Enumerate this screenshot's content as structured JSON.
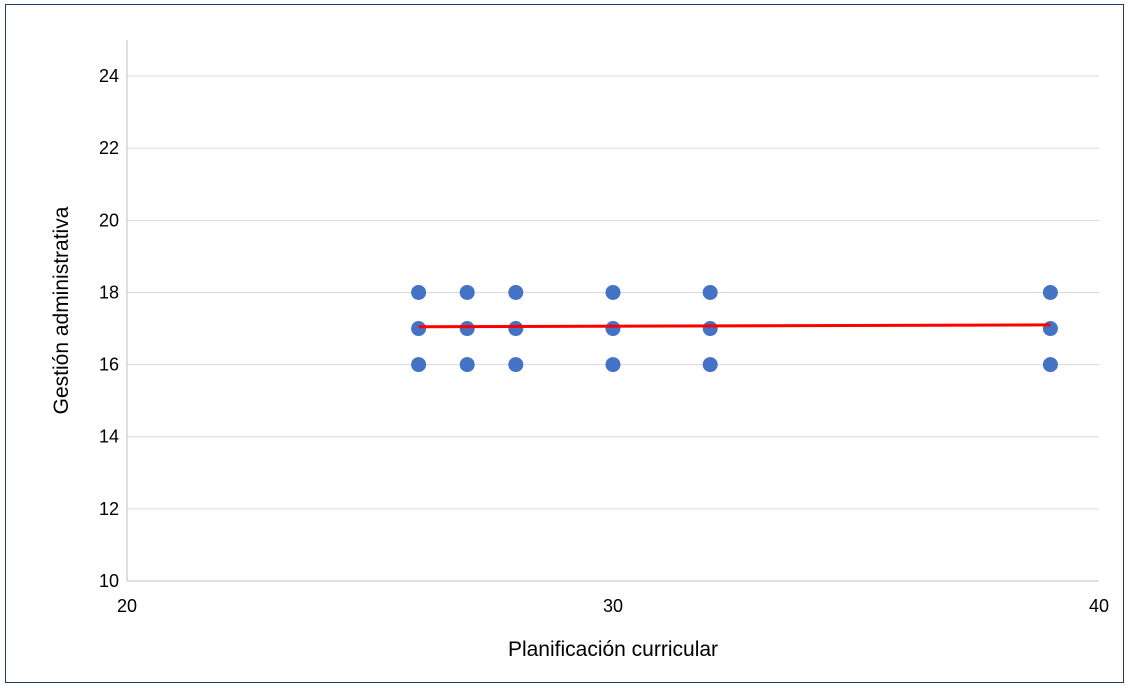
{
  "chart_data": {
    "type": "scatter",
    "title": "",
    "xlabel": "Planificación curricular",
    "ylabel": "Gestión administrativa",
    "xlim": [
      20,
      40
    ],
    "ylim": [
      10,
      25
    ],
    "x_ticks": [
      20,
      30,
      40
    ],
    "y_ticks": [
      10,
      12,
      14,
      16,
      18,
      20,
      22,
      24
    ],
    "grid": "horizontal",
    "legend": "none",
    "series": [
      {
        "marker_color": "#4472c4",
        "points": [
          {
            "x": 26,
            "y": 18
          },
          {
            "x": 26,
            "y": 17
          },
          {
            "x": 26,
            "y": 16
          },
          {
            "x": 27,
            "y": 18
          },
          {
            "x": 27,
            "y": 17
          },
          {
            "x": 27,
            "y": 16
          },
          {
            "x": 28,
            "y": 18
          },
          {
            "x": 28,
            "y": 17
          },
          {
            "x": 28,
            "y": 16
          },
          {
            "x": 30,
            "y": 18
          },
          {
            "x": 30,
            "y": 17
          },
          {
            "x": 30,
            "y": 16
          },
          {
            "x": 32,
            "y": 18
          },
          {
            "x": 32,
            "y": 17
          },
          {
            "x": 32,
            "y": 16
          },
          {
            "x": 39,
            "y": 18
          },
          {
            "x": 39,
            "y": 17
          },
          {
            "x": 39,
            "y": 16
          }
        ]
      }
    ],
    "trendline": {
      "type": "linear",
      "color": "#ff0000",
      "x": [
        26,
        39
      ],
      "y": [
        17.05,
        17.1
      ]
    }
  }
}
